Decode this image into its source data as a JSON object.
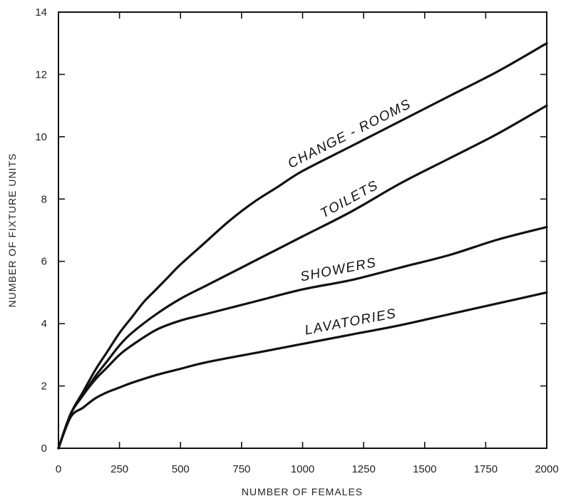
{
  "chart_data": {
    "type": "line",
    "title": "",
    "xlabel": "NUMBER OF FEMALES",
    "ylabel": "NUMBER OF FIXTURE UNITS",
    "xlim": [
      0,
      2000
    ],
    "ylim": [
      0,
      14
    ],
    "xticks": [
      0,
      250,
      500,
      750,
      1000,
      1250,
      1500,
      1750,
      2000
    ],
    "yticks": [
      0,
      2,
      4,
      6,
      8,
      10,
      12,
      14
    ],
    "grid": false,
    "series": [
      {
        "name": "CHANGE - ROOMS",
        "x": [
          0,
          50,
          100,
          150,
          200,
          250,
          300,
          350,
          400,
          450,
          500,
          600,
          700,
          800,
          900,
          1000,
          1200,
          1400,
          1600,
          1800,
          2000
        ],
        "y": [
          0,
          1.1,
          1.8,
          2.5,
          3.1,
          3.7,
          4.2,
          4.7,
          5.1,
          5.5,
          5.9,
          6.6,
          7.3,
          7.9,
          8.4,
          8.9,
          9.7,
          10.5,
          11.3,
          12.1,
          13.0
        ]
      },
      {
        "name": "TOILETS",
        "x": [
          0,
          50,
          100,
          150,
          200,
          250,
          300,
          400,
          500,
          600,
          700,
          800,
          1000,
          1200,
          1400,
          1600,
          1800,
          2000
        ],
        "y": [
          0,
          1.1,
          1.7,
          2.3,
          2.8,
          3.3,
          3.7,
          4.3,
          4.8,
          5.2,
          5.6,
          6.0,
          6.8,
          7.6,
          8.5,
          9.3,
          10.1,
          11.0
        ]
      },
      {
        "name": "SHOWERS",
        "x": [
          0,
          50,
          100,
          150,
          200,
          250,
          300,
          400,
          500,
          600,
          800,
          1000,
          1200,
          1400,
          1600,
          1800,
          2000
        ],
        "y": [
          0,
          1.1,
          1.7,
          2.2,
          2.6,
          3.0,
          3.3,
          3.8,
          4.1,
          4.3,
          4.7,
          5.1,
          5.4,
          5.8,
          6.2,
          6.7,
          7.1
        ]
      },
      {
        "name": "LAVATORIES",
        "x": [
          0,
          50,
          100,
          150,
          200,
          250,
          300,
          400,
          500,
          600,
          800,
          1000,
          1200,
          1400,
          1600,
          1800,
          2000
        ],
        "y": [
          0,
          1.0,
          1.3,
          1.6,
          1.8,
          1.95,
          2.1,
          2.35,
          2.55,
          2.75,
          3.05,
          3.35,
          3.65,
          3.95,
          4.3,
          4.65,
          5.0
        ]
      }
    ],
    "annotations": [
      "CHANGE - ROOMS",
      "TOILETS",
      "SHOWERS",
      "LAVATORIES"
    ]
  }
}
